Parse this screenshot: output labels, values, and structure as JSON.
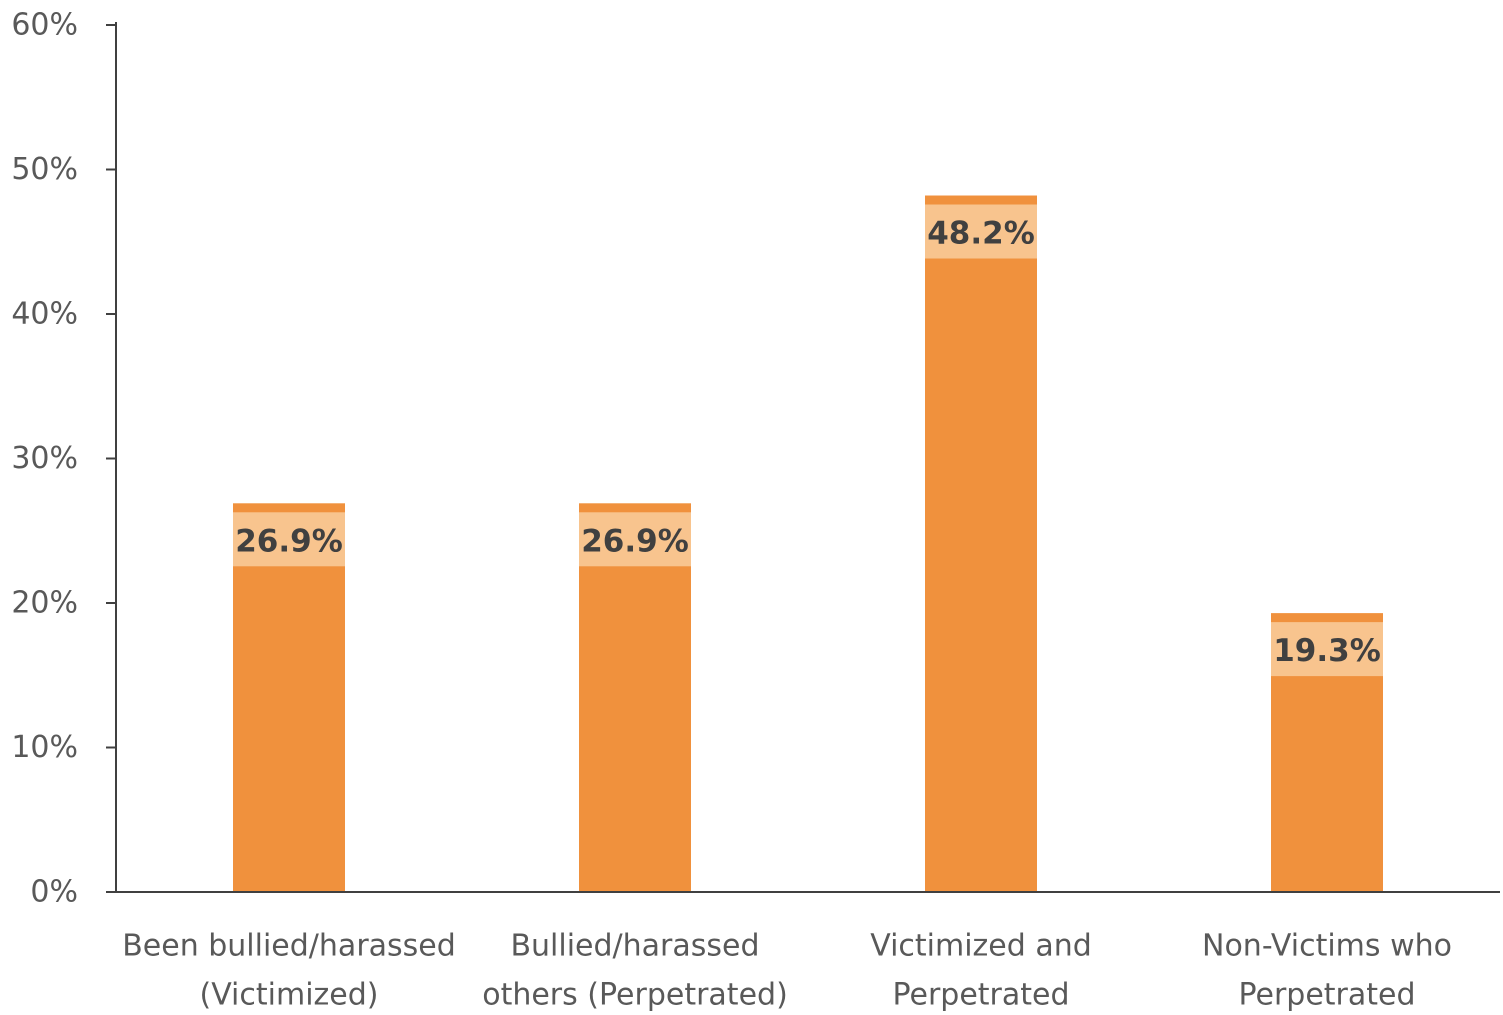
{
  "chart_data": {
    "type": "bar",
    "categories": [
      [
        "Been bullied/harassed",
        "(Victimized)"
      ],
      [
        "Bullied/harassed",
        "others (Perpetrated)"
      ],
      [
        "Victimized and",
        "Perpetrated"
      ],
      [
        "Non-Victims who",
        "Perpetrated"
      ]
    ],
    "values": [
      26.9,
      26.9,
      48.2,
      19.3
    ],
    "data_labels": [
      "26.9%",
      "26.9%",
      "48.2%",
      "19.3%"
    ],
    "ylim": [
      0,
      60
    ],
    "yticks": [
      0,
      10,
      20,
      30,
      40,
      50,
      60
    ],
    "ytick_labels": [
      "0%",
      "10%",
      "20%",
      "30%",
      "40%",
      "50%",
      "60%"
    ],
    "title": "",
    "xlabel": "",
    "ylabel": "",
    "grid": false,
    "legend": false,
    "colors": {
      "bar": "#F0913D",
      "label_band": "#F8C48E",
      "axis": "#404040"
    }
  }
}
